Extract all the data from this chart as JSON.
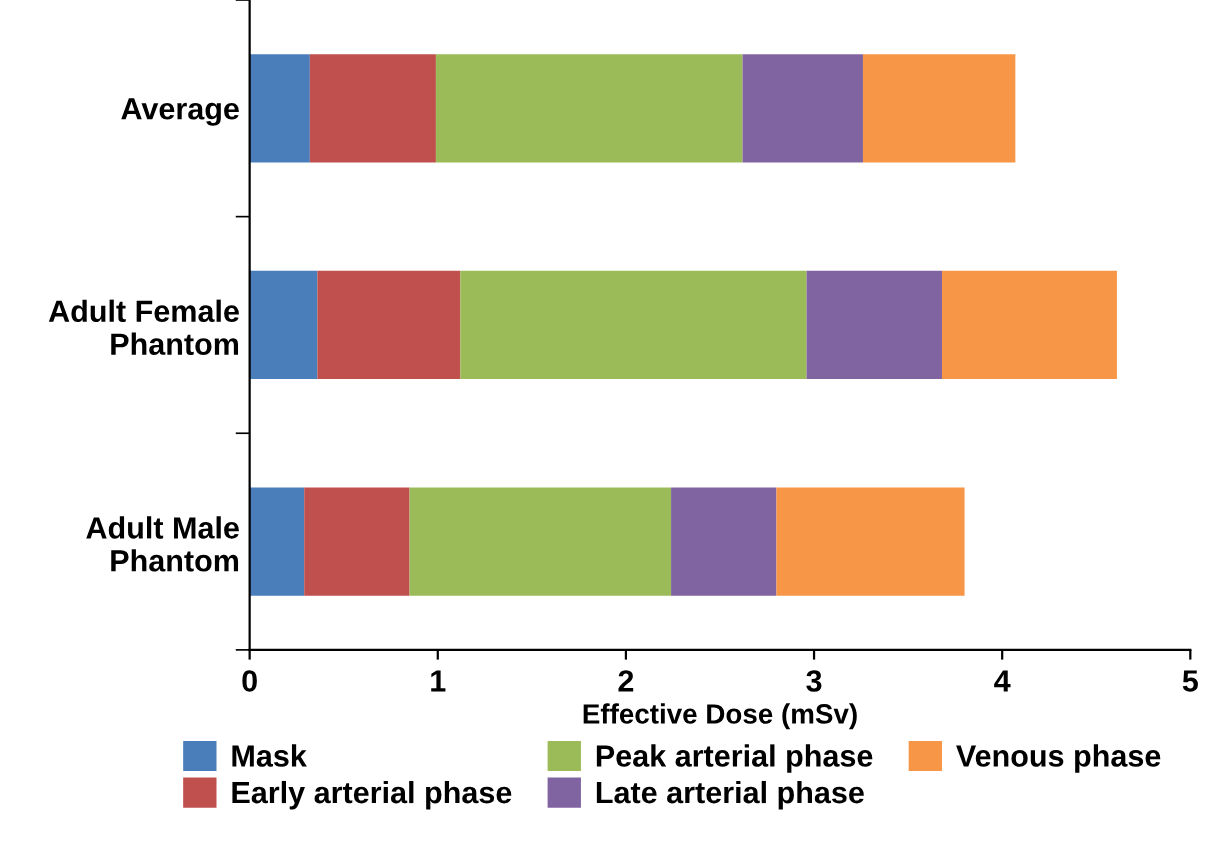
{
  "chart_data": {
    "type": "bar",
    "orientation": "horizontal",
    "stacked": true,
    "xlabel": "Effective Dose (mSv)",
    "categories": [
      "Average",
      "Adult Female\nPhantom",
      "Adult Male\nPhantom"
    ],
    "series": [
      {
        "name": "Mask",
        "color": "#4a7ebb",
        "values": [
          0.32,
          0.36,
          0.29
        ]
      },
      {
        "name": "Early arterial phase",
        "color": "#c0504d",
        "values": [
          0.67,
          0.76,
          0.56
        ]
      },
      {
        "name": "Peak arterial phase",
        "color": "#9bbb59",
        "values": [
          1.63,
          1.84,
          1.39
        ]
      },
      {
        "name": "Late arterial phase",
        "color": "#8064a2",
        "values": [
          0.64,
          0.72,
          0.56
        ]
      },
      {
        "name": "Venous phase",
        "color": "#f79646",
        "values": [
          0.81,
          0.93,
          1.0
        ]
      }
    ],
    "xlim": [
      0,
      5
    ],
    "xticks": [
      0,
      1,
      2,
      3,
      4,
      5
    ],
    "grid": false,
    "legend": "bottom"
  }
}
